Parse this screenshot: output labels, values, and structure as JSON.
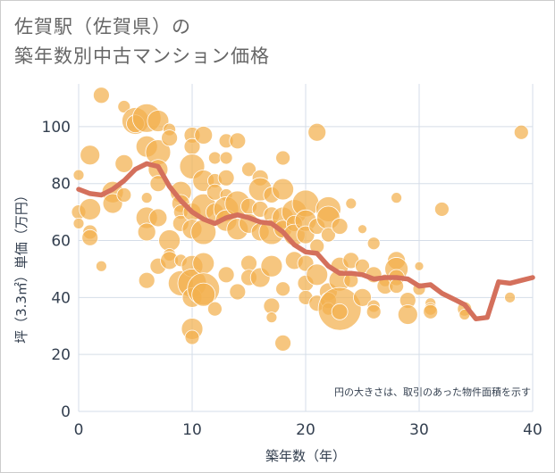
{
  "title_line1": "佐賀駅（佐賀県）の",
  "title_line2": "築年数別中古マンション価格",
  "chart_data": {
    "type": "scatter",
    "xlabel": "築年数（年）",
    "ylabel": "坪（3.3㎡）単価（万円）",
    "xlim": [
      0,
      40
    ],
    "ylim": [
      0,
      115
    ],
    "xticks": [
      0,
      10,
      20,
      30,
      40
    ],
    "yticks": [
      0,
      20,
      40,
      60,
      80,
      100
    ],
    "grid": true,
    "note": "円の大きさは、取引のあった物件面積を示す",
    "colors": {
      "bubble": "#f2b04d",
      "line": "#d4705c",
      "grid": "#d5dde8"
    },
    "points": [
      [
        0,
        83,
        6
      ],
      [
        0,
        70,
        8
      ],
      [
        0,
        66,
        6
      ],
      [
        1,
        90,
        11
      ],
      [
        1,
        71,
        12
      ],
      [
        1,
        63,
        8
      ],
      [
        1,
        61,
        9
      ],
      [
        2,
        111,
        9
      ],
      [
        2,
        51,
        6
      ],
      [
        3,
        77,
        12
      ],
      [
        3,
        73,
        11
      ],
      [
        4,
        107,
        7
      ],
      [
        4,
        87,
        10
      ],
      [
        4,
        76,
        8
      ],
      [
        5,
        102,
        15
      ],
      [
        5,
        101,
        10
      ],
      [
        6,
        103,
        16
      ],
      [
        6,
        93,
        12
      ],
      [
        6,
        75,
        6
      ],
      [
        6,
        68,
        12
      ],
      [
        6,
        63,
        10
      ],
      [
        6,
        46,
        9
      ],
      [
        7,
        102,
        12
      ],
      [
        7,
        91,
        14
      ],
      [
        7,
        85,
        11
      ],
      [
        7,
        80,
        9
      ],
      [
        7,
        68,
        10
      ],
      [
        7,
        51,
        9
      ],
      [
        8,
        99,
        7
      ],
      [
        8,
        96,
        9
      ],
      [
        8,
        60,
        12
      ],
      [
        8,
        55,
        7
      ],
      [
        8,
        53,
        10
      ],
      [
        9,
        77,
        12
      ],
      [
        9,
        73,
        10
      ],
      [
        9,
        70,
        8
      ],
      [
        9,
        66,
        9
      ],
      [
        9,
        53,
        7
      ],
      [
        9,
        45,
        14
      ],
      [
        10,
        97,
        9
      ],
      [
        10,
        93,
        9
      ],
      [
        10,
        86,
        14
      ],
      [
        10,
        70,
        10
      ],
      [
        10,
        64,
        11
      ],
      [
        10,
        51,
        12
      ],
      [
        10,
        45,
        16
      ],
      [
        10,
        40,
        11
      ],
      [
        10,
        29,
        12
      ],
      [
        10,
        26,
        8
      ],
      [
        11,
        97,
        10
      ],
      [
        11,
        81,
        12
      ],
      [
        11,
        72,
        14
      ],
      [
        11,
        63,
        14
      ],
      [
        11,
        52,
        12
      ],
      [
        11,
        43,
        18
      ],
      [
        11,
        41,
        13
      ],
      [
        12,
        89,
        7
      ],
      [
        12,
        81,
        8
      ],
      [
        12,
        77,
        9
      ],
      [
        12,
        70,
        10
      ],
      [
        12,
        36,
        8
      ],
      [
        13,
        95,
        8
      ],
      [
        13,
        89,
        7
      ],
      [
        13,
        82,
        9
      ],
      [
        13,
        76,
        7
      ],
      [
        13,
        71,
        14
      ],
      [
        13,
        67,
        12
      ],
      [
        13,
        48,
        9
      ],
      [
        14,
        95,
        9
      ],
      [
        14,
        73,
        14
      ],
      [
        14,
        64,
        12
      ],
      [
        14,
        42,
        9
      ],
      [
        15,
        85,
        8
      ],
      [
        15,
        72,
        9
      ],
      [
        15,
        66,
        11
      ],
      [
        15,
        52,
        9
      ],
      [
        15,
        47,
        9
      ],
      [
        16,
        82,
        9
      ],
      [
        16,
        78,
        13
      ],
      [
        16,
        71,
        9
      ],
      [
        16,
        63,
        10
      ],
      [
        16,
        47,
        11
      ],
      [
        17,
        76,
        9
      ],
      [
        17,
        69,
        9
      ],
      [
        17,
        63,
        14
      ],
      [
        17,
        51,
        12
      ],
      [
        17,
        37,
        9
      ],
      [
        17,
        33,
        6
      ],
      [
        18,
        89,
        8
      ],
      [
        18,
        78,
        12
      ],
      [
        18,
        68,
        12
      ],
      [
        18,
        64,
        10
      ],
      [
        18,
        43,
        8
      ],
      [
        18,
        24,
        9
      ],
      [
        19,
        70,
        14
      ],
      [
        19,
        66,
        9
      ],
      [
        19,
        62,
        12
      ],
      [
        19,
        53,
        10
      ],
      [
        20,
        73,
        15
      ],
      [
        20,
        67,
        12
      ],
      [
        20,
        62,
        10
      ],
      [
        20,
        52,
        9
      ],
      [
        20,
        45,
        9
      ],
      [
        20,
        40,
        8
      ],
      [
        21,
        98,
        10
      ],
      [
        21,
        65,
        9
      ],
      [
        21,
        58,
        8
      ],
      [
        21,
        48,
        12
      ],
      [
        21,
        38,
        9
      ],
      [
        22,
        71,
        14
      ],
      [
        22,
        68,
        13
      ],
      [
        22,
        62,
        8
      ],
      [
        22,
        42,
        10
      ],
      [
        22,
        39,
        9
      ],
      [
        22,
        36,
        7
      ],
      [
        23,
        65,
        9
      ],
      [
        23,
        51,
        10
      ],
      [
        23,
        46,
        12
      ],
      [
        23,
        36,
        24
      ],
      [
        23,
        35,
        9
      ],
      [
        24,
        73,
        6
      ],
      [
        24,
        53,
        9
      ],
      [
        24,
        46,
        8
      ],
      [
        25,
        64,
        5
      ],
      [
        25,
        51,
        8
      ],
      [
        25,
        40,
        10
      ],
      [
        26,
        59,
        7
      ],
      [
        26,
        48,
        9
      ],
      [
        26,
        37,
        7
      ],
      [
        26,
        35,
        8
      ],
      [
        27,
        46,
        7
      ],
      [
        27,
        44,
        9
      ],
      [
        28,
        75,
        6
      ],
      [
        28,
        53,
        10
      ],
      [
        28,
        50,
        13
      ],
      [
        28,
        47,
        9
      ],
      [
        28,
        44,
        8
      ],
      [
        29,
        39,
        9
      ],
      [
        29,
        34,
        11
      ],
      [
        30,
        51,
        5
      ],
      [
        30,
        43,
        7
      ],
      [
        31,
        38,
        6
      ],
      [
        31,
        36,
        7
      ],
      [
        31,
        35,
        8
      ],
      [
        32,
        71,
        8
      ],
      [
        34,
        36,
        8
      ],
      [
        34,
        34,
        6
      ],
      [
        38,
        40,
        6
      ],
      [
        39,
        98,
        8
      ]
    ],
    "line": {
      "x": [
        0,
        1,
        2,
        3,
        4,
        5,
        6,
        7,
        8,
        9,
        10,
        11,
        12,
        13,
        14,
        15,
        16,
        17,
        18,
        19,
        20,
        21,
        22,
        23,
        24,
        25,
        26,
        27,
        28,
        29,
        30,
        31,
        32,
        33,
        34,
        35,
        36,
        37,
        38,
        39,
        40
      ],
      "y": [
        78,
        76.5,
        76,
        78,
        81,
        85,
        87,
        86,
        79,
        74,
        70,
        67.5,
        66,
        68,
        69,
        68,
        66.5,
        66,
        63,
        58.5,
        56,
        55.5,
        51,
        48.5,
        48.5,
        48,
        46.5,
        47,
        47,
        46.5,
        44,
        44.5,
        41.5,
        39.5,
        37.5,
        32.5,
        33,
        45.5,
        45,
        46,
        47
      ]
    }
  }
}
